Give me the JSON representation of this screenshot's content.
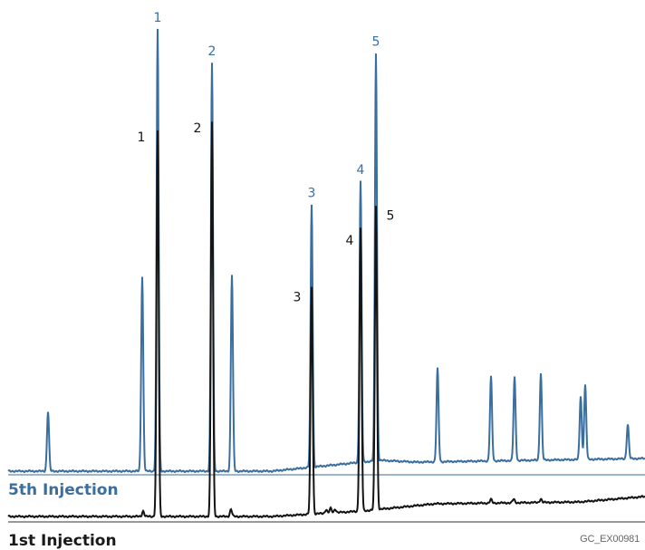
{
  "colors": {
    "fifth_injection": "#3a6e9f",
    "first_injection": "#141414",
    "baseline_fifth": "#3a6e9f",
    "baseline_first": "#333333"
  },
  "figure_code": "GC_EX00981",
  "chart_data": {
    "type": "line",
    "title": "",
    "xlabel": "",
    "ylabel": "",
    "grid": false,
    "axes_visible": false,
    "series": [
      {
        "name": "5th Injection",
        "color": "#3a6e9f",
        "numbered_peaks": [
          {
            "label": "1",
            "x": 174,
            "height": 488
          },
          {
            "label": "2",
            "x": 234,
            "height": 451
          },
          {
            "label": "3",
            "x": 344,
            "height": 290
          },
          {
            "label": "4",
            "x": 398,
            "height": 310
          },
          {
            "label": "5",
            "x": 415,
            "height": 450
          }
        ],
        "other_peaks": [
          {
            "x": 53,
            "height": 66
          },
          {
            "x": 157,
            "height": 215
          },
          {
            "x": 256,
            "height": 217
          },
          {
            "x": 483,
            "height": 103
          },
          {
            "x": 542,
            "height": 93
          },
          {
            "x": 568,
            "height": 92
          },
          {
            "x": 597,
            "height": 96
          },
          {
            "x": 641,
            "height": 70
          },
          {
            "x": 646,
            "height": 82
          },
          {
            "x": 693,
            "height": 38
          }
        ]
      },
      {
        "name": "1st Injection",
        "color": "#141414",
        "numbered_peaks": [
          {
            "label": "1",
            "x": 174,
            "height": 426
          },
          {
            "label": "2",
            "x": 234,
            "height": 436
          },
          {
            "label": "3",
            "x": 344,
            "height": 251
          },
          {
            "label": "4",
            "x": 398,
            "height": 312
          },
          {
            "label": "5",
            "x": 415,
            "height": 336
          }
        ],
        "other_peaks": [
          {
            "x": 158,
            "height": 6
          },
          {
            "x": 255,
            "height": 8
          },
          {
            "x": 360,
            "height": 4
          },
          {
            "x": 365,
            "height": 5
          },
          {
            "x": 370,
            "height": 4
          },
          {
            "x": 542,
            "height": 4
          },
          {
            "x": 567,
            "height": 4
          },
          {
            "x": 597,
            "height": 4
          }
        ]
      }
    ],
    "trace_labels": [
      "5th Injection",
      "1st Injection"
    ]
  }
}
